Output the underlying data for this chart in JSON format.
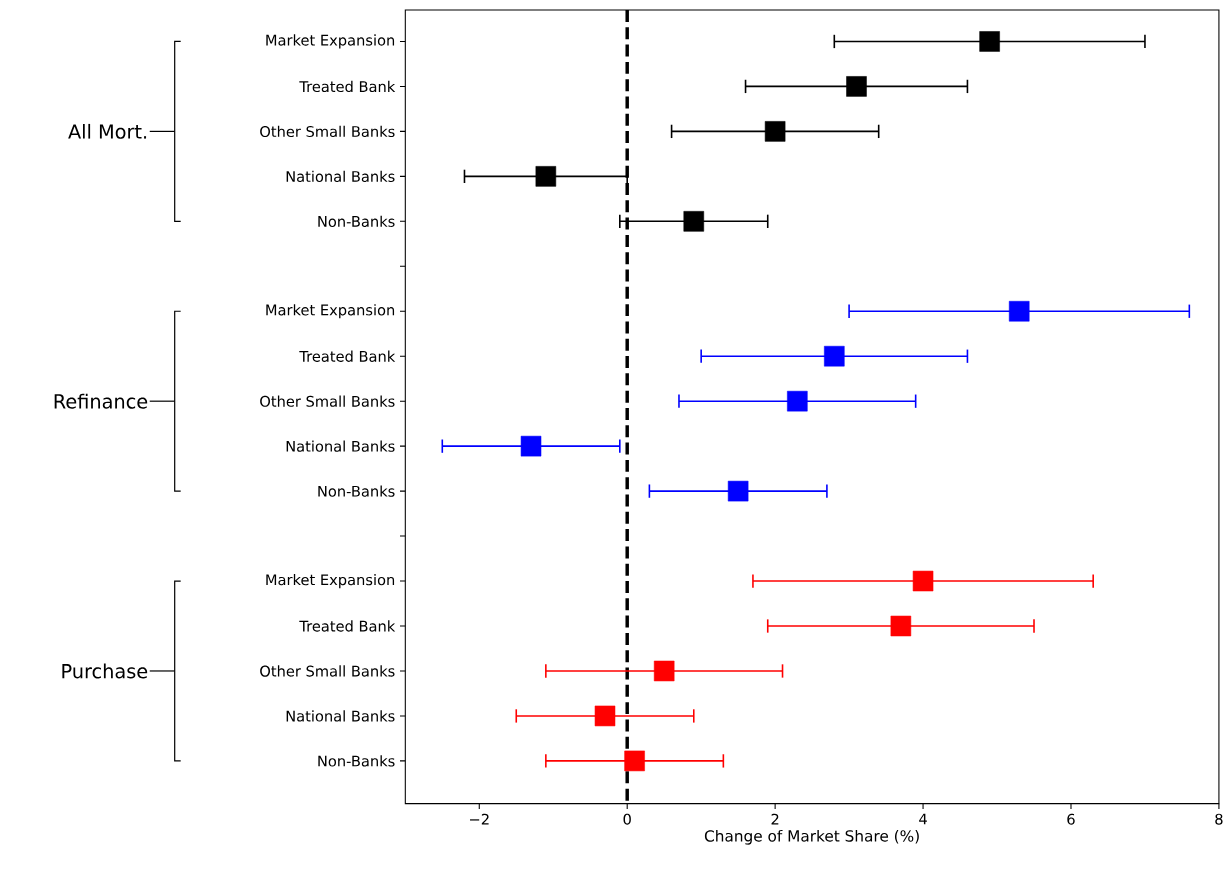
{
  "chart_data": {
    "type": "scatter",
    "orientation": "horizontal",
    "categories": [
      "Market Expansion",
      "Treated Bank",
      "Other Small Banks",
      "National Banks",
      "Non-Banks",
      null,
      "Market Expansion",
      "Treated Bank",
      "Other Small Banks",
      "National Banks",
      "Non-Banks",
      null,
      "Market Expansion",
      "Treated Bank",
      "Other Small Banks",
      "National Banks",
      "Non-Banks"
    ],
    "series": [
      {
        "color": "#000000",
        "values": [
          4.9,
          3.1,
          2.0,
          -1.1,
          0.9,
          null,
          null,
          null,
          null,
          null,
          null,
          null,
          null,
          null,
          null,
          null,
          null
        ],
        "errors": [
          [
            2.8,
            7.0
          ],
          [
            1.6,
            4.6
          ],
          [
            0.6,
            3.4
          ],
          [
            -2.2,
            0.0
          ],
          [
            -0.1,
            1.9
          ],
          null,
          null,
          null,
          null,
          null,
          null,
          null,
          null,
          null,
          null,
          null,
          null
        ]
      },
      {
        "color": "#0000ff",
        "values": [
          null,
          null,
          null,
          null,
          null,
          null,
          5.3,
          2.8,
          2.3,
          -1.3,
          1.5,
          null,
          null,
          null,
          null,
          null,
          null
        ],
        "errors": [
          null,
          null,
          null,
          null,
          null,
          null,
          [
            3.0,
            7.6
          ],
          [
            1.0,
            4.6
          ],
          [
            0.7,
            3.9
          ],
          [
            -2.5,
            -0.1
          ],
          [
            0.3,
            2.7
          ],
          null,
          null,
          null,
          null,
          null,
          null
        ]
      },
      {
        "color": "#ff0000",
        "values": [
          null,
          null,
          null,
          null,
          null,
          null,
          null,
          null,
          null,
          null,
          null,
          null,
          4.0,
          3.7,
          0.5,
          -0.3,
          0.1
        ],
        "errors": [
          null,
          null,
          null,
          null,
          null,
          null,
          null,
          null,
          null,
          null,
          null,
          null,
          [
            1.7,
            6.3
          ],
          [
            1.9,
            5.5
          ],
          [
            -1.1,
            2.1
          ],
          [
            -1.5,
            0.9
          ],
          [
            -1.1,
            1.3
          ]
        ]
      }
    ],
    "xlabel": "Change of Market Share (%)",
    "xlim": [
      -3,
      8
    ],
    "xticks": [
      {
        "value": -2,
        "label": "−2"
      },
      0,
      2,
      4,
      6,
      8
    ],
    "ref_lines": [
      {
        "axis": "x",
        "value": 0,
        "color": "#000000",
        "line_style": "dashed"
      }
    ],
    "annotations": [
      "All Mort.",
      "Refinance",
      "Purchase"
    ],
    "marker": "square"
  }
}
